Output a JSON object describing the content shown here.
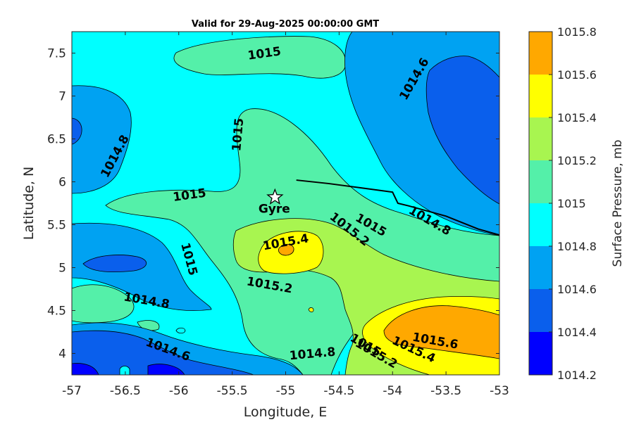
{
  "title": "Valid for 29-Aug-2025 00:00:00 GMT",
  "xlabel": "Longitude, E",
  "ylabel": "Latitude, N",
  "colorbar": {
    "label": "Surface Pressure, mb",
    "levels": [
      "1014.2",
      "1014.4",
      "1014.6",
      "1014.8",
      "1015",
      "1015.2",
      "1015.4",
      "1015.6",
      "1015.8"
    ],
    "colors": [
      "#0000ff",
      "#0a5fec",
      "#00a2f2",
      "#00ffff",
      "#54f0a9",
      "#a8f550",
      "#ffff00",
      "#ffa800",
      "#ff5500"
    ]
  },
  "chart_data": {
    "type": "contour",
    "xlim": [
      -57,
      -53
    ],
    "ylim": [
      3.75,
      7.75
    ],
    "xticks": [
      "-57",
      "-56.5",
      "-56",
      "-55.5",
      "-55",
      "-54.5",
      "-54",
      "-53.5",
      "-53"
    ],
    "yticks": [
      "4",
      "4.5",
      "5",
      "5.5",
      "6",
      "6.5",
      "7",
      "7.5"
    ],
    "contour_labels": [
      {
        "text": "1015",
        "lon": -55.2,
        "lat": 7.5,
        "angle": -8
      },
      {
        "text": "1014.6",
        "lon": -53.8,
        "lat": 7.2,
        "angle": -60
      },
      {
        "text": "1015",
        "lon": -55.45,
        "lat": 6.55,
        "angle": -85
      },
      {
        "text": "1014.8",
        "lon": -56.6,
        "lat": 6.3,
        "angle": -62
      },
      {
        "text": "1015",
        "lon": -55.9,
        "lat": 5.85,
        "angle": -8
      },
      {
        "text": "1015.2",
        "lon": -54.4,
        "lat": 5.45,
        "angle": 38
      },
      {
        "text": "1015",
        "lon": -54.2,
        "lat": 5.5,
        "angle": 30
      },
      {
        "text": "1014.8",
        "lon": -53.65,
        "lat": 5.55,
        "angle": 30
      },
      {
        "text": "1015.4",
        "lon": -55.0,
        "lat": 5.3,
        "angle": -10
      },
      {
        "text": "1015",
        "lon": -55.9,
        "lat": 5.1,
        "angle": 75
      },
      {
        "text": "1015.2",
        "lon": -55.15,
        "lat": 4.8,
        "angle": 10
      },
      {
        "text": "1014.8",
        "lon": -56.3,
        "lat": 4.62,
        "angle": 10
      },
      {
        "text": "1014.6",
        "lon": -56.1,
        "lat": 4.05,
        "angle": 20
      },
      {
        "text": "1014.8",
        "lon": -54.75,
        "lat": 4.0,
        "angle": -5
      },
      {
        "text": "1015",
        "lon": -54.25,
        "lat": 4.1,
        "angle": 30
      },
      {
        "text": "1015.2",
        "lon": -54.15,
        "lat": 4.0,
        "angle": 30
      },
      {
        "text": "1015.4",
        "lon": -53.8,
        "lat": 4.05,
        "angle": 25
      },
      {
        "text": "1015.6",
        "lon": -53.6,
        "lat": 4.15,
        "angle": 10
      }
    ],
    "markers": [
      {
        "name": "Gyre",
        "lon": -55.1,
        "lat": 5.82
      }
    ],
    "track": [
      [
        -54.9,
        6.02
      ],
      [
        -54.6,
        5.98
      ],
      [
        -54.3,
        5.93
      ],
      [
        -54.0,
        5.88
      ],
      [
        -53.95,
        5.75
      ],
      [
        -53.85,
        5.72
      ],
      [
        -53.5,
        5.6
      ],
      [
        -53.2,
        5.45
      ],
      [
        -53.0,
        5.38
      ]
    ]
  }
}
